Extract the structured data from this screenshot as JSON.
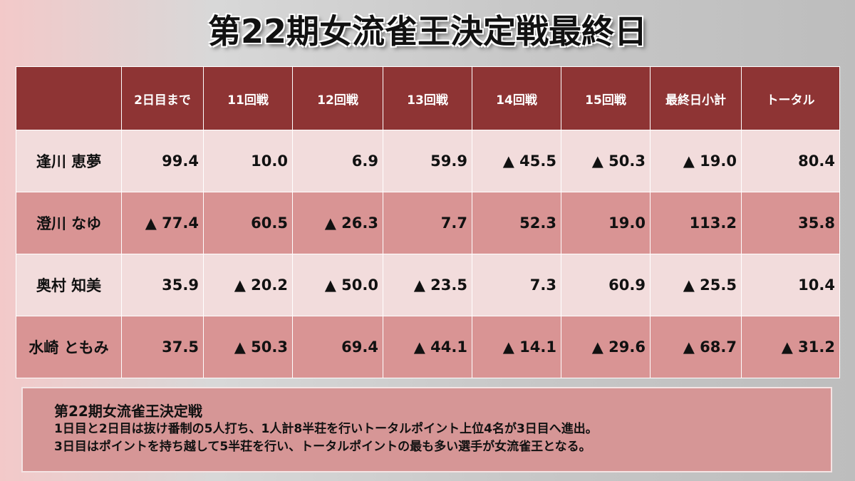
{
  "header": {
    "title": "第22期女流雀王決定戦最終日"
  },
  "table": {
    "columns": [
      "",
      "2日目まで",
      "11回戦",
      "12回戦",
      "13回戦",
      "14回戦",
      "15回戦",
      "最終日小計",
      "トータル"
    ],
    "rows": [
      [
        "逢川 恵夢",
        "99.4",
        "10.0",
        "6.9",
        "59.9",
        "▲ 45.5",
        "▲ 50.3",
        "▲ 19.0",
        "80.4"
      ],
      [
        "澄川 なゆ",
        "▲ 77.4",
        "60.5",
        "▲ 26.3",
        "7.7",
        "52.3",
        "19.0",
        "113.2",
        "35.8"
      ],
      [
        "奥村 知美",
        "35.9",
        "▲ 20.2",
        "▲ 50.0",
        "▲ 23.5",
        "7.3",
        "60.9",
        "▲ 25.5",
        "10.4"
      ],
      [
        "水崎 ともみ",
        "37.5",
        "▲ 50.3",
        "69.4",
        "▲ 44.1",
        "▲ 14.1",
        "▲ 29.6",
        "▲ 68.7",
        "▲ 31.2"
      ]
    ]
  },
  "note": {
    "title": "第22期女流雀王決定戦",
    "lines": [
      "1日目と2日目は抜け番制の5人打ち、1人計8半荘を行いトータルポイント上位4名が3日目へ進出。",
      "3日目はポイントを持ち越して5半荘を行い、トータルポイントの最も多い選手が女流雀王となる。"
    ]
  }
}
